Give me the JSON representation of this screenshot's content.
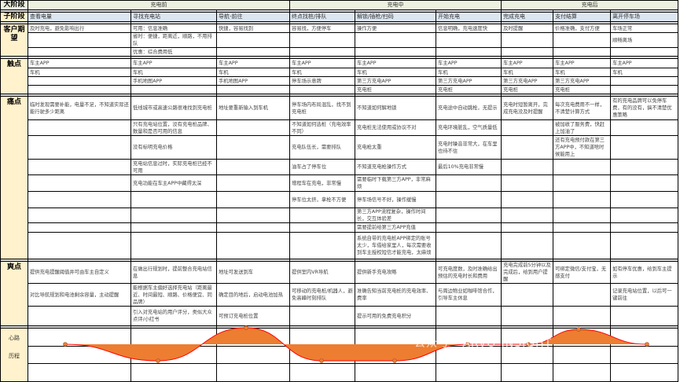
{
  "stages_label": "大阶段",
  "substages_label": "子阶段",
  "stages": [
    "充电前",
    "充电中",
    "充电后"
  ],
  "substages": [
    "查看电量",
    "寻找充电站",
    "导航-前往",
    "终点找桩/排队",
    "解锁/插枪/扫码",
    "开始充电",
    "完成充电",
    "支付结算",
    "离开停车场"
  ],
  "sections": [
    {
      "label": "客户期望",
      "rows": [
        [
          "及时充电，避免影响出行",
          "可用：信息准确",
          "快捷，容易找到",
          "容易找，方便停车",
          "操作方便",
          "信息明确，充电速度快",
          "及时提醒",
          "价格准确，支付方便",
          "车场正常"
        ],
        [
          "",
          "省时：便捷，距离近，顺路，不用排队",
          "",
          "",
          "",
          "",
          "",
          "",
          "顺畅离场"
        ],
        [
          "",
          "优惠：综合费用低",
          "",
          "",
          "",
          "",
          "",
          "",
          ""
        ]
      ]
    },
    {
      "label": "触点",
      "rows": [
        [
          "车主APP",
          "车主APP",
          "车主APP",
          "车主APP",
          "车主APP",
          "车主APP",
          "车主APP",
          "车主APP",
          "车主APP"
        ],
        [
          "车机",
          "车机",
          "车机",
          "车机",
          "车机",
          "车机",
          "车机",
          "车机",
          "车机"
        ],
        [
          "",
          "手机地图APP",
          "手机地图APP",
          "停车场示意牌",
          "第三方充电APP",
          "第三方充电APP",
          "第三方充电APP",
          "第三方充电APP",
          ""
        ],
        [
          "",
          "",
          "",
          "",
          "充电桩",
          "充电桩",
          "充电桩",
          "充电桩",
          ""
        ]
      ]
    },
    {
      "label": "痛点",
      "rows": [
        [
          "临时发现需要补能，电量不足，不知道实际还能行驶多少距离",
          "低线城市或高速公路很难找到充电桩",
          "地址要重新输入到车机",
          "停车场内布局混乱，找不到充电桩",
          "不知道如何解地锁",
          "充电途中自动跳枪，无提示",
          "充电时短暂离开，完成充电没及时提醒",
          "每次充电费用不一样，不清楚计算方式",
          "有的充电品牌可以免停车费，有的没有，搞不清楚优惠策略"
        ],
        [
          "",
          "只有充电站位置，没有充电桩品牌、数量和是否可用的信息",
          "",
          "不知道如何选桩（充电效率不同）",
          "充电桩无法使用或协议不对",
          "充电环境脏乱，空气质量低",
          "",
          "被加收了服务费，快赶上加油了",
          ""
        ],
        [
          "",
          "没有标明充电价格",
          "",
          "充电队伍长，需要排队",
          "充电枪太重",
          "充电时噪音非常大，在车里也待不住",
          "",
          "还有充电预付款在第三方APP中，不知道啥时候能用上",
          ""
        ],
        [
          "",
          "充电站信息过时，实际充电桩已经不可用",
          "",
          "油车占了停车位",
          "不知道充电枪操作方式",
          "最后10%充电非常慢",
          "",
          "",
          ""
        ],
        [
          "",
          "充电功能在车主APP中藏得太深",
          "",
          "增程车在充电，非常慢",
          "需要临时下载第三方APP，非常麻烦",
          "",
          "",
          "",
          ""
        ],
        [
          "",
          "",
          "",
          "停车位太挤，拿枪不方便",
          "停车场信号不好，操作缓慢",
          "",
          "",
          "",
          ""
        ],
        [
          "",
          "",
          "",
          "",
          "第三方APP流程复杂，操作时间长，交互体验差",
          "",
          "",
          "",
          ""
        ],
        [
          "",
          "",
          "",
          "",
          "需要提前给第三方APP充值",
          "",
          "",
          "",
          ""
        ],
        [
          "",
          "",
          "",
          "",
          "系统自带的充电桩APP绑定的账号太少，车借给家里人，每次需要收到车主授权短信才能充电，太麻烦",
          "",
          "",
          "",
          ""
        ]
      ]
    },
    {
      "label": "爽点",
      "rows": [
        [
          "提供充电提醒阈值并可由车主自定义",
          "在做出行规划时，提前整合充电站信息",
          "地址可发送到车",
          "提供室内VR导航",
          "提供新手充电攻略",
          "可充电度数，及时准确给出预估的充电时长和费用",
          "充电完成前5分钟以及完成后，给到用户提醒",
          "可绑定微信/支付宝，无感支付",
          "如有停车优惠，给到车主提示"
        ],
        [
          "对比导航规划和电池剩余容量，主动提醒",
          "能根据车主偏好选择充电站（距离最近、时间最短、顺路、价格便宜、同品牌）",
          "确定目的地后，启动电池加热",
          "可移动的充电桩/机器人，避免高峰时刻排队",
          "准确告知当前充电桩的充电效率、费率",
          "与周边物业如咖啡馆合作，引导车主休息",
          "",
          "",
          "记录充电站位置，以后可一键前往"
        ],
        [
          "",
          "引入对充电站的用户评分，类似大众点评/小红书",
          "可预订充电桩位置",
          "",
          "提示可用的免费充电积分",
          "",
          "",
          "",
          ""
        ]
      ]
    }
  ],
  "emotion": {
    "label_line1": "心路",
    "label_line2": "历程",
    "scores": [
      0,
      -1,
      1,
      -1,
      -1,
      0,
      0,
      0.9,
      0
    ],
    "fill_color": "#ed7d31",
    "line_color": "#ff0000"
  },
  "watermark": "公众号 · ARVO-INSIGHT"
}
